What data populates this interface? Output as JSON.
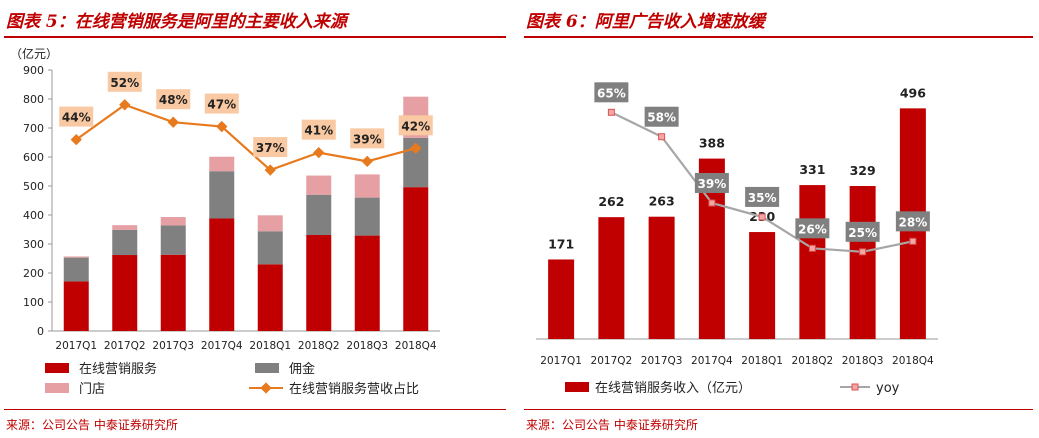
{
  "charts": {
    "left": {
      "figure_title": "图表 5：在线营销服务是阿里的主要收入来源",
      "source": "来源：公司公告  中泰证券研究所"
    },
    "right": {
      "figure_title": "图表 6：阿里广告收入增速放缓",
      "source": "来源：公司公告  中泰证券研究所"
    }
  },
  "colors": {
    "accent": "#c00000",
    "online_marketing": "#c00000",
    "commission": "#808080",
    "stores": "#e6a0a4",
    "share_line": "#e87a1e",
    "share_label_bg": "#f8c9a2",
    "yoy_line": "#a6a6a6",
    "yoy_label_bg": "#808080"
  },
  "chart_data": [
    {
      "type": "bar",
      "stacked": true,
      "ylabel": "（亿元）",
      "ylim": [
        0,
        900
      ],
      "yticks": [
        0,
        100,
        200,
        300,
        400,
        500,
        600,
        700,
        800,
        900
      ],
      "grid": false,
      "legend_position": "bottom",
      "categories": [
        "2017Q1",
        "2017Q2",
        "2017Q3",
        "2017Q4",
        "2018Q1",
        "2018Q2",
        "2018Q3",
        "2018Q4"
      ],
      "series": [
        {
          "name": "在线营销服务",
          "values": [
            171,
            262,
            263,
            388,
            230,
            331,
            329,
            496
          ]
        },
        {
          "name": "佣金",
          "values": [
            82,
            87,
            101,
            163,
            114,
            139,
            131,
            170
          ]
        },
        {
          "name": "门店",
          "values": [
            4,
            16,
            29,
            50,
            55,
            66,
            80,
            142
          ]
        }
      ],
      "line_series": {
        "name": "在线营销服务营收占比",
        "values": [
          44,
          52,
          48,
          47,
          37,
          41,
          39,
          42
        ],
        "labels": [
          "44%",
          "52%",
          "48%",
          "47%",
          "37%",
          "41%",
          "39%",
          "42%"
        ],
        "scale_max_percent": 60
      }
    },
    {
      "type": "bar",
      "ylim": [
        0,
        600
      ],
      "grid": false,
      "legend_position": "bottom",
      "categories": [
        "2017Q1",
        "2017Q2",
        "2017Q3",
        "2017Q4",
        "2018Q1",
        "2018Q2",
        "2018Q3",
        "2018Q4"
      ],
      "series": [
        {
          "name": "在线营销服务收入（亿元）",
          "values": [
            171,
            262,
            263,
            388,
            230,
            331,
            329,
            496
          ],
          "labels": [
            "171",
            "262",
            "263",
            "388",
            "230",
            "331",
            "329",
            "496"
          ]
        }
      ],
      "line_series": {
        "name": "yoy",
        "categories": [
          "2017Q2",
          "2017Q3",
          "2017Q4",
          "2018Q1",
          "2018Q2",
          "2018Q3",
          "2018Q4"
        ],
        "values": [
          65,
          58,
          39,
          35,
          26,
          25,
          28
        ],
        "labels": [
          "65%",
          "58%",
          "39%",
          "35%",
          "26%",
          "25%",
          "28%"
        ],
        "scale_max_percent": 80
      }
    }
  ]
}
